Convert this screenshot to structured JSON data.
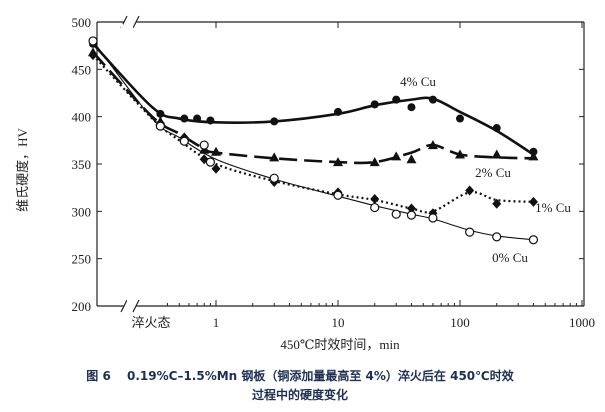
{
  "chart_data": {
    "type": "line",
    "xlabel": "450℃时效时间，min",
    "ylabel": "维氏硬度，HV",
    "x_scale": "log",
    "xlim": [
      0.1,
      1000
    ],
    "ylim": [
      200,
      500
    ],
    "x_ticks": [
      "1",
      "10",
      "100",
      "1000"
    ],
    "x_tick_values": [
      1,
      10,
      100,
      1000
    ],
    "x_start_label": "淬火态",
    "y_ticks": [
      "200",
      "250",
      "300",
      "350",
      "400",
      "450",
      "500"
    ],
    "y_tick_values": [
      200,
      250,
      300,
      350,
      400,
      450,
      500
    ],
    "axis_break": true,
    "grid": false,
    "series": [
      {
        "name": "4% Cu",
        "marker": "filled-circle",
        "line_style": "solid-thick",
        "quenched": 477,
        "points": [
          [
            0.35,
            403
          ],
          [
            0.55,
            398
          ],
          [
            0.7,
            398
          ],
          [
            0.9,
            396
          ],
          [
            3,
            395
          ],
          [
            10,
            405
          ],
          [
            20,
            413
          ],
          [
            30,
            418
          ],
          [
            40,
            410
          ],
          [
            60,
            418
          ],
          [
            100,
            398
          ],
          [
            200,
            388
          ],
          [
            400,
            363
          ]
        ],
        "curve": [
          [
            0.3,
            410
          ],
          [
            0.5,
            398
          ],
          [
            1,
            394
          ],
          [
            3,
            395
          ],
          [
            10,
            403
          ],
          [
            20,
            412
          ],
          [
            40,
            418
          ],
          [
            60,
            419
          ],
          [
            100,
            405
          ],
          [
            200,
            385
          ],
          [
            400,
            360
          ]
        ]
      },
      {
        "name": "2% Cu",
        "marker": "filled-triangle",
        "line_style": "dashed-thick",
        "quenched": 468,
        "points": [
          [
            0.35,
            395
          ],
          [
            0.55,
            378
          ],
          [
            0.8,
            365
          ],
          [
            1,
            363
          ],
          [
            3,
            357
          ],
          [
            10,
            352
          ],
          [
            20,
            352
          ],
          [
            30,
            358
          ],
          [
            40,
            355
          ],
          [
            60,
            370
          ],
          [
            100,
            360
          ],
          [
            200,
            360
          ],
          [
            400,
            358
          ]
        ],
        "curve": [
          [
            0.3,
            400
          ],
          [
            0.5,
            382
          ],
          [
            0.8,
            366
          ],
          [
            1,
            362
          ],
          [
            3,
            356
          ],
          [
            10,
            352
          ],
          [
            20,
            352
          ],
          [
            40,
            362
          ],
          [
            60,
            370
          ],
          [
            100,
            360
          ],
          [
            200,
            357
          ],
          [
            400,
            356
          ]
        ]
      },
      {
        "name": "1% Cu",
        "marker": "filled-diamond",
        "line_style": "dotted",
        "quenched": 465,
        "points": [
          [
            0.35,
            393
          ],
          [
            0.55,
            378
          ],
          [
            0.8,
            355
          ],
          [
            1,
            345
          ],
          [
            3,
            331
          ],
          [
            10,
            320
          ],
          [
            20,
            313
          ],
          [
            40,
            303
          ],
          [
            60,
            298
          ],
          [
            120,
            322
          ],
          [
            200,
            308
          ],
          [
            400,
            310
          ]
        ],
        "curve": [
          [
            0.3,
            398
          ],
          [
            0.5,
            375
          ],
          [
            1,
            350
          ],
          [
            3,
            332
          ],
          [
            10,
            318
          ],
          [
            20,
            312
          ],
          [
            40,
            303
          ],
          [
            60,
            300
          ],
          [
            120,
            320
          ],
          [
            200,
            312
          ],
          [
            400,
            310
          ]
        ]
      },
      {
        "name": "0% Cu",
        "marker": "open-circle",
        "line_style": "solid-thin",
        "quenched": 480,
        "points": [
          [
            0.35,
            390
          ],
          [
            0.55,
            374
          ],
          [
            0.8,
            370
          ],
          [
            0.9,
            352
          ],
          [
            3,
            335
          ],
          [
            10,
            317
          ],
          [
            20,
            304
          ],
          [
            30,
            297
          ],
          [
            40,
            296
          ],
          [
            60,
            293
          ],
          [
            120,
            278
          ],
          [
            200,
            273
          ],
          [
            400,
            270
          ]
        ],
        "curve": [
          [
            0.3,
            398
          ],
          [
            0.5,
            378
          ],
          [
            1,
            355
          ],
          [
            3,
            334
          ],
          [
            10,
            316
          ],
          [
            20,
            306
          ],
          [
            40,
            297
          ],
          [
            60,
            292
          ],
          [
            120,
            280
          ],
          [
            200,
            274
          ],
          [
            400,
            270
          ]
        ]
      }
    ]
  },
  "caption": {
    "line1": "图 6　 0.19%C–1.5%Mn 钢板（铜添加量最高至 4%）淬火后在 450℃时效",
    "line2": "过程中的硬度变化"
  }
}
